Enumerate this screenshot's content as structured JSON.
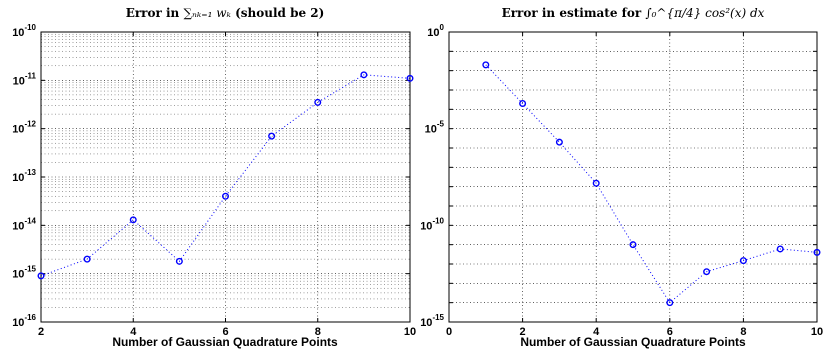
{
  "chart_data": [
    {
      "type": "scatter",
      "title": "Error in",
      "title_math": "∑ₙₖ₌₁ wₖ",
      "title_suffix": "(should be 2)",
      "xlabel": "Number of Gaussian Quadrature Points",
      "ylabel": "",
      "xlim": [
        2,
        10
      ],
      "ylim_exponents": [
        -16,
        -10
      ],
      "log_y": true,
      "grid": "major and minor (dotted)",
      "x_ticks": [
        "2",
        "4",
        "6",
        "8",
        "10"
      ],
      "y_ticks": [
        {
          "base": "10",
          "exp": "-16"
        },
        {
          "base": "10",
          "exp": "-15"
        },
        {
          "base": "10",
          "exp": "-14"
        },
        {
          "base": "10",
          "exp": "-13"
        },
        {
          "base": "10",
          "exp": "-12"
        },
        {
          "base": "10",
          "exp": "-11"
        },
        {
          "base": "10",
          "exp": "-10"
        }
      ],
      "x": [
        2,
        3,
        4,
        5,
        6,
        7,
        8,
        9,
        10
      ],
      "y": [
        9e-16,
        2e-15,
        1.3e-14,
        1.8e-15,
        4e-14,
        7e-13,
        3.5e-12,
        1.3e-11,
        1.1e-11
      ],
      "marker_color": "#0000ff",
      "line_style": "dotted"
    },
    {
      "type": "scatter",
      "title": "Error in estimate for",
      "title_math": "∫₀^{π/4} cos²(x) dx",
      "xlabel": "Number of Gaussian Quadrature Points",
      "ylabel": "",
      "xlim": [
        0,
        10
      ],
      "ylim_exponents": [
        -15,
        0
      ],
      "log_y": true,
      "grid": "major (dotted)",
      "x_ticks": [
        "0",
        "2",
        "4",
        "6",
        "8",
        "10"
      ],
      "y_ticks": [
        {
          "base": "10",
          "exp": "-15"
        },
        {
          "base": "10",
          "exp": "-10"
        },
        {
          "base": "10",
          "exp": "-5"
        },
        {
          "base": "10",
          "exp": "0"
        }
      ],
      "x": [
        1,
        2,
        3,
        4,
        5,
        6,
        7,
        8,
        9,
        10
      ],
      "y": [
        0.02,
        0.0002,
        2e-06,
        1.5e-08,
        1e-11,
        1e-14,
        4e-13,
        1.5e-12,
        6e-12,
        4e-12
      ],
      "marker_color": "#0000ff",
      "line_style": "dotted"
    }
  ]
}
